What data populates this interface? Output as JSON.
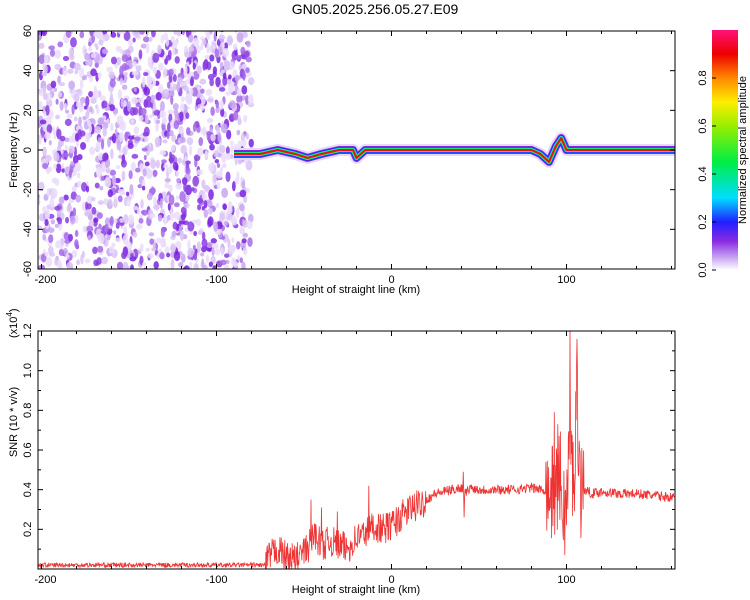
{
  "title": "GN05.2025.256.05.27.E09",
  "chart_data": [
    {
      "type": "heatmap",
      "name": "spectrogram",
      "xlabel": "Height of straight line (km)",
      "ylabel": "Frequency (Hz)",
      "xlim": [
        -202,
        162
      ],
      "ylim": [
        -60,
        60
      ],
      "xticks": [
        -200,
        -100,
        0,
        100
      ],
      "xtick_labels": [
        "-200",
        "-100",
        "0",
        "100"
      ],
      "yticks": [
        -60,
        -40,
        -20,
        0,
        20,
        40,
        60
      ],
      "ytick_labels": [
        "-60",
        "-40",
        "-20",
        "0",
        "20",
        "40",
        "60"
      ],
      "noise_region_km": [
        -202,
        -80
      ],
      "ridge": {
        "frequency_hz": 0,
        "start_km": -90,
        "end_km": 162,
        "points": [
          [
            -90,
            -2
          ],
          [
            -75,
            -2
          ],
          [
            -65,
            0
          ],
          [
            -55,
            -2
          ],
          [
            -48,
            -4
          ],
          [
            -40,
            -2
          ],
          [
            -30,
            0
          ],
          [
            -22,
            0
          ],
          [
            -20,
            -4
          ],
          [
            -15,
            0
          ],
          [
            -5,
            0
          ],
          [
            20,
            0
          ],
          [
            80,
            0
          ],
          [
            85,
            -2
          ],
          [
            90,
            -6
          ],
          [
            94,
            2
          ],
          [
            97,
            6
          ],
          [
            100,
            0
          ],
          [
            110,
            0
          ],
          [
            162,
            0
          ]
        ],
        "peak_amplitude": 1.0
      },
      "colorbar": {
        "label": "Normalized spectral amplitude",
        "range": [
          0,
          1
        ],
        "ticks": [
          "0.0",
          "0.2",
          "0.4",
          "0.6",
          "0.8"
        ],
        "tick_values": [
          0,
          0.2,
          0.4,
          0.6,
          0.8
        ]
      }
    },
    {
      "type": "line",
      "name": "snr",
      "xlabel": "Height of straight line (km)",
      "ylabel": "SNR (10 * v/v)",
      "yscale_label": "(x10",
      "yscale_exp": "4",
      "xlim": [
        -202,
        162
      ],
      "ylim": [
        0,
        1.2
      ],
      "xticks": [
        -200,
        -100,
        0,
        100
      ],
      "xtick_labels": [
        "-200",
        "-100",
        "0",
        "100"
      ],
      "yticks": [
        0.2,
        0.4,
        0.6,
        0.8,
        1.0,
        1.2
      ],
      "ytick_labels": [
        "0.2",
        "0.4",
        "0.6",
        "0.8",
        "1.0",
        "1.2"
      ],
      "color": "#ee3333",
      "x": [
        -202,
        -150,
        -100,
        -72,
        -70,
        -65,
        -60,
        -55,
        -48,
        -44,
        -40,
        -35,
        -30,
        -25,
        -20,
        -15,
        -10,
        -5,
        0,
        5,
        10,
        15,
        20,
        25,
        30,
        35,
        40,
        42,
        45,
        50,
        60,
        70,
        80,
        85,
        88,
        92,
        94,
        96,
        98,
        100,
        102,
        104,
        106,
        108,
        110,
        115,
        120,
        130,
        140,
        150,
        162
      ],
      "y": [
        0.02,
        0.02,
        0.02,
        0.02,
        0.06,
        0.1,
        0.06,
        0.05,
        0.1,
        0.18,
        0.12,
        0.14,
        0.12,
        0.1,
        0.16,
        0.18,
        0.22,
        0.2,
        0.22,
        0.26,
        0.3,
        0.32,
        0.35,
        0.38,
        0.39,
        0.4,
        0.41,
        0.38,
        0.41,
        0.4,
        0.4,
        0.4,
        0.41,
        0.4,
        0.4,
        0.38,
        0.4,
        0.5,
        0.3,
        0.3,
        0.7,
        0.4,
        0.9,
        0.4,
        0.4,
        0.38,
        0.39,
        0.38,
        0.38,
        0.37,
        0.36
      ],
      "spikes": [
        [
          -46,
          0.35
        ],
        [
          -40,
          0.31
        ],
        [
          -31,
          0.29
        ],
        [
          -13,
          0.42
        ],
        [
          41,
          0.49
        ],
        [
          41.5,
          0.26
        ],
        [
          93,
          0.79
        ],
        [
          95,
          0.73
        ],
        [
          102,
          1.2
        ],
        [
          106,
          1.16
        ],
        [
          109,
          0.49
        ]
      ]
    }
  ]
}
